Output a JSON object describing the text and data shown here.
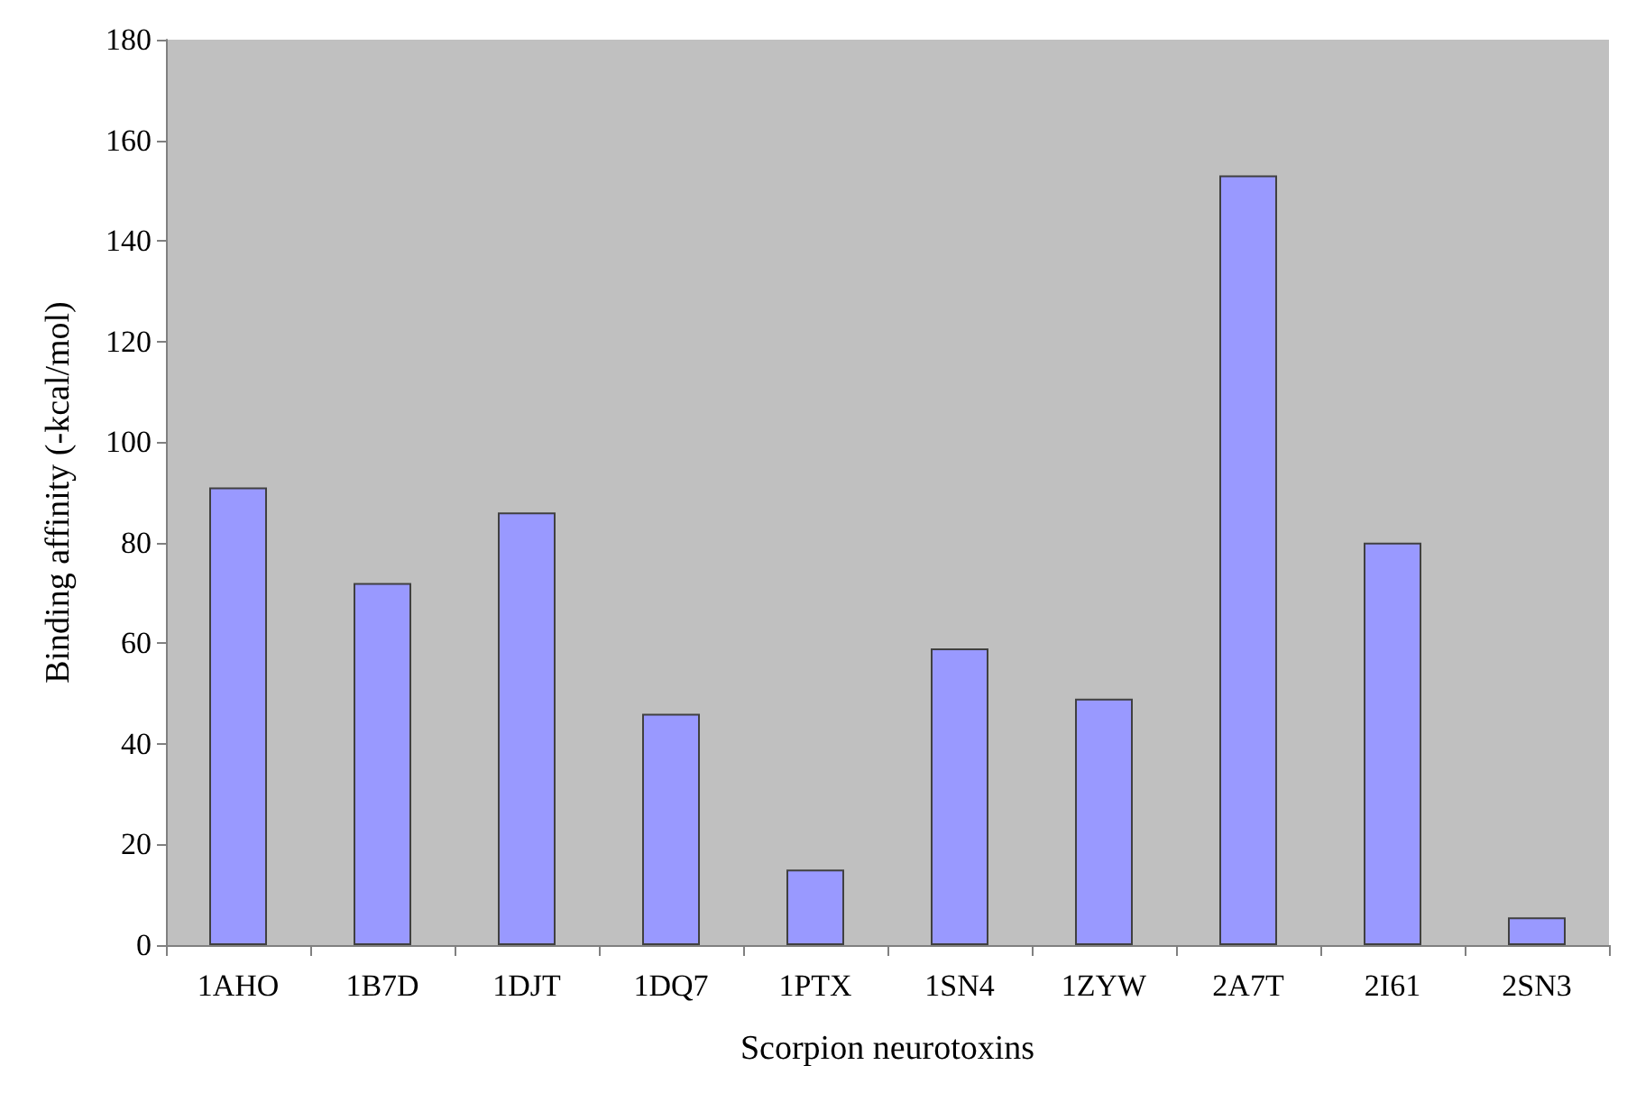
{
  "chart_data": {
    "type": "bar",
    "xlabel": "Scorpion neurotoxins",
    "ylabel": "Binding affinity (-kcal/mol)",
    "categories": [
      "1AHO",
      "1B7D",
      "1DJT",
      "1DQ7",
      "1PTX",
      "1SN4",
      "1ZYW",
      "2A7T",
      "2I61",
      "2SN3"
    ],
    "values": [
      91,
      72,
      86,
      46,
      15,
      59,
      49,
      153,
      80,
      5.5
    ],
    "color": "#9999ff",
    "ylim": [
      0,
      180
    ],
    "yticks": [
      0,
      20,
      40,
      60,
      80,
      100,
      120,
      140,
      160,
      180
    ],
    "grid": false
  }
}
